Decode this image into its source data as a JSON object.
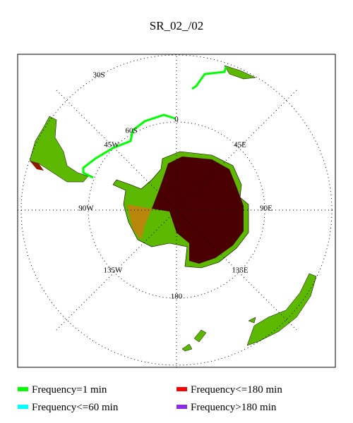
{
  "title": "SR_02_/02",
  "grid_labels": {
    "lat_30": "30S",
    "lat_60": "60S",
    "lon_0": "0",
    "lon_45w": "45W",
    "lon_45e": "45E",
    "lon_90w": "90W",
    "lon_90e": "90E",
    "lon_135w": "135W",
    "lon_135e": "135E",
    "lon_180": "180"
  },
  "legend": [
    {
      "label": "Frequency=1 min",
      "color": "#00ff00"
    },
    {
      "label": "Frequency<=180 min",
      "color": "#ff0000"
    },
    {
      "label": "Frequency<=60 min",
      "color": "#00ffff"
    },
    {
      "label": "Frequency>180 min",
      "color": "#8a2be2"
    }
  ]
}
